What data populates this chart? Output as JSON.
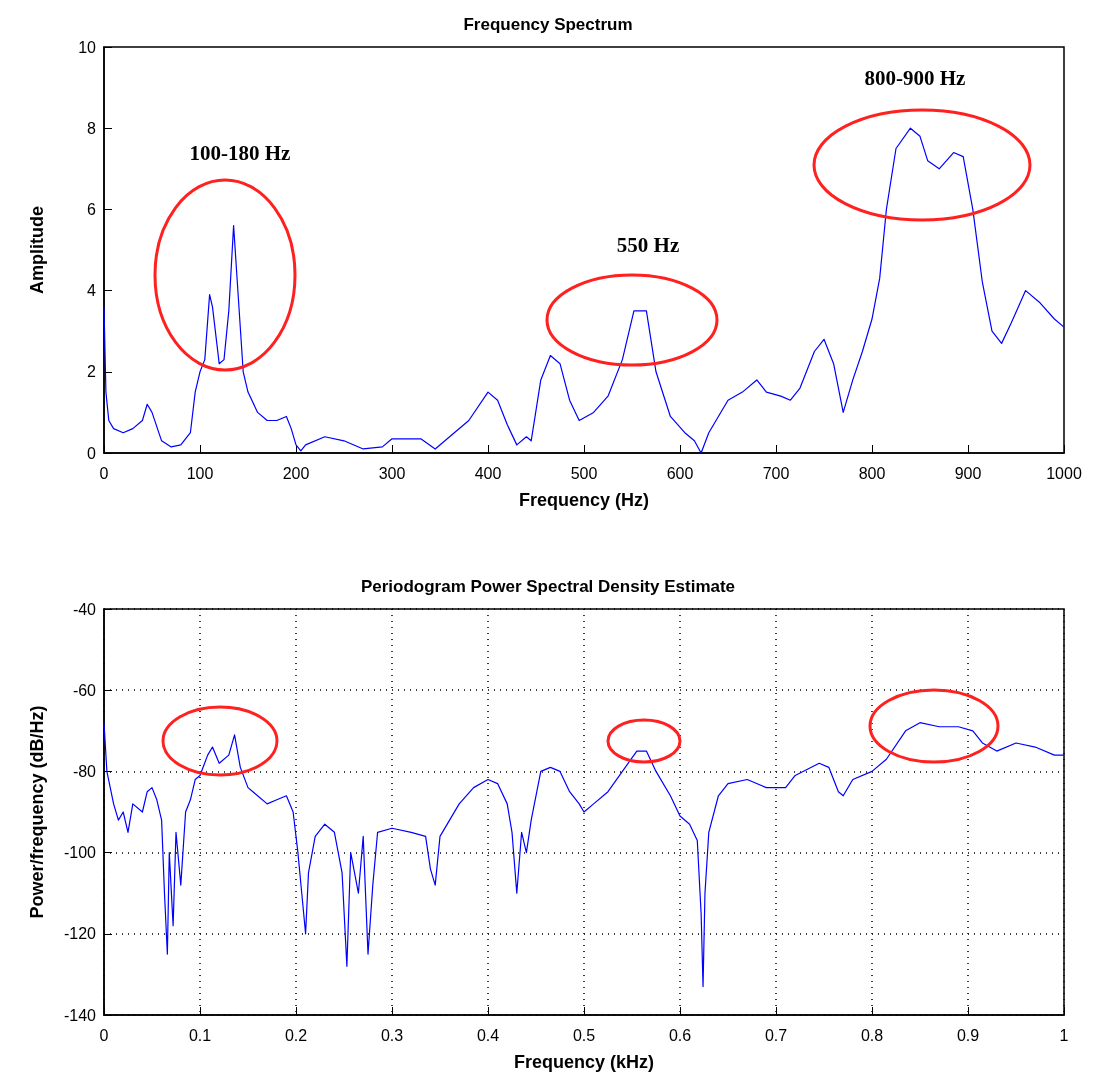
{
  "chart_data": [
    {
      "type": "line",
      "title": "Frequency Spectrum",
      "xlabel": "Frequency (Hz)",
      "ylabel": "Amplitude",
      "xlim": [
        0,
        1000
      ],
      "xticks": [
        0,
        100,
        200,
        300,
        400,
        500,
        600,
        700,
        800,
        900,
        1000
      ],
      "ylim": [
        0,
        10
      ],
      "yticks": [
        0,
        2,
        4,
        6,
        8,
        10
      ],
      "grid": false,
      "marker": "none",
      "line_style": "solid",
      "annotations": [
        "100-180 Hz",
        "550 Hz",
        "800-900 Hz"
      ],
      "x": [
        0,
        2,
        5,
        10,
        20,
        30,
        40,
        45,
        50,
        60,
        70,
        80,
        90,
        95,
        100,
        105,
        110,
        113,
        120,
        125,
        130,
        135,
        140,
        145,
        150,
        160,
        170,
        180,
        190,
        195,
        200,
        205,
        210,
        230,
        250,
        270,
        290,
        300,
        330,
        345,
        360,
        380,
        400,
        410,
        420,
        430,
        440,
        445,
        455,
        465,
        475,
        485,
        495,
        510,
        525,
        540,
        552,
        565,
        575,
        590,
        605,
        615,
        622,
        630,
        650,
        665,
        680,
        690,
        705,
        715,
        725,
        740,
        750,
        760,
        770,
        780,
        790,
        800,
        808,
        815,
        825,
        840,
        850,
        858,
        870,
        885,
        895,
        905,
        915,
        925,
        935,
        945,
        960,
        975,
        990,
        1000
      ],
      "series": [
        {
          "color": "#0000ff",
          "values": [
            3.6,
            1.5,
            0.8,
            0.6,
            0.5,
            0.6,
            0.8,
            1.2,
            1.0,
            0.3,
            0.15,
            0.2,
            0.5,
            1.5,
            2.0,
            2.3,
            3.9,
            3.6,
            2.2,
            2.3,
            3.5,
            5.6,
            3.8,
            2.0,
            1.5,
            1.0,
            0.8,
            0.8,
            0.9,
            0.6,
            0.2,
            0.05,
            0.2,
            0.4,
            0.3,
            0.1,
            0.15,
            0.35,
            0.35,
            0.1,
            0.4,
            0.8,
            1.5,
            1.3,
            0.7,
            0.2,
            0.4,
            0.3,
            1.8,
            2.4,
            2.2,
            1.3,
            0.8,
            1.0,
            1.4,
            2.3,
            3.5,
            3.5,
            2.0,
            0.9,
            0.5,
            0.3,
            0.0,
            0.5,
            1.3,
            1.5,
            1.8,
            1.5,
            1.4,
            1.3,
            1.6,
            2.5,
            2.8,
            2.2,
            1.0,
            1.8,
            2.5,
            3.3,
            4.3,
            6.0,
            7.5,
            8.0,
            7.8,
            7.2,
            7.0,
            7.4,
            7.3,
            6.0,
            4.2,
            3.0,
            2.7,
            3.2,
            4.0,
            3.7,
            3.3,
            3.1
          ]
        }
      ]
    },
    {
      "type": "line",
      "title": "Periodogram Power Spectral Density Estimate",
      "xlabel": "Frequency (kHz)",
      "ylabel": "Power/frequency (dB/Hz)",
      "xlim": [
        0,
        1
      ],
      "xticks": [
        0,
        0.1,
        0.2,
        0.3,
        0.4,
        0.5,
        0.6,
        0.7,
        0.8,
        0.9,
        1
      ],
      "ylim": [
        -140,
        -40
      ],
      "yticks": [
        -140,
        -120,
        -100,
        -80,
        -60,
        -40
      ],
      "grid": true,
      "marker": "none",
      "line_style": "solid",
      "x": [
        0,
        0.003,
        0.01,
        0.015,
        0.02,
        0.025,
        0.03,
        0.04,
        0.045,
        0.05,
        0.055,
        0.06,
        0.063,
        0.066,
        0.068,
        0.072,
        0.075,
        0.08,
        0.085,
        0.09,
        0.095,
        0.1,
        0.108,
        0.113,
        0.12,
        0.13,
        0.136,
        0.142,
        0.15,
        0.16,
        0.17,
        0.18,
        0.19,
        0.197,
        0.202,
        0.206,
        0.21,
        0.213,
        0.22,
        0.23,
        0.24,
        0.248,
        0.253,
        0.257,
        0.265,
        0.27,
        0.275,
        0.28,
        0.285,
        0.3,
        0.32,
        0.335,
        0.34,
        0.345,
        0.35,
        0.37,
        0.385,
        0.4,
        0.41,
        0.42,
        0.425,
        0.43,
        0.435,
        0.44,
        0.445,
        0.455,
        0.465,
        0.475,
        0.485,
        0.495,
        0.5,
        0.51,
        0.525,
        0.54,
        0.555,
        0.565,
        0.575,
        0.59,
        0.6,
        0.61,
        0.618,
        0.622,
        0.624,
        0.626,
        0.63,
        0.64,
        0.65,
        0.67,
        0.69,
        0.71,
        0.72,
        0.745,
        0.755,
        0.765,
        0.77,
        0.78,
        0.8,
        0.815,
        0.835,
        0.85,
        0.87,
        0.89,
        0.905,
        0.915,
        0.93,
        0.95,
        0.97,
        0.99,
        1.0
      ],
      "series": [
        {
          "color": "#0000ff",
          "values": [
            -68,
            -80,
            -88,
            -92,
            -90,
            -95,
            -88,
            -90,
            -85,
            -84,
            -87,
            -92,
            -110,
            -125,
            -100,
            -118,
            -95,
            -108,
            -90,
            -87,
            -82,
            -81,
            -76,
            -74,
            -78,
            -76,
            -71,
            -79,
            -84,
            -86,
            -88,
            -87,
            -86,
            -90,
            -100,
            -110,
            -120,
            -105,
            -96,
            -93,
            -95,
            -105,
            -128,
            -100,
            -110,
            -96,
            -125,
            -108,
            -95,
            -94,
            -95,
            -96,
            -104,
            -108,
            -96,
            -88,
            -84,
            -82,
            -83,
            -88,
            -95,
            -110,
            -95,
            -100,
            -92,
            -80,
            -79,
            -80,
            -85,
            -88,
            -90,
            -88,
            -85,
            -80,
            -75,
            -75,
            -80,
            -86,
            -91,
            -93,
            -97,
            -115,
            -133,
            -110,
            -95,
            -86,
            -83,
            -82,
            -84,
            -84,
            -81,
            -78,
            -79,
            -85,
            -86,
            -82,
            -80,
            -77,
            -70,
            -68,
            -69,
            -69,
            -70,
            -73,
            -75,
            -73,
            -74,
            -76,
            -76
          ]
        }
      ]
    }
  ]
}
